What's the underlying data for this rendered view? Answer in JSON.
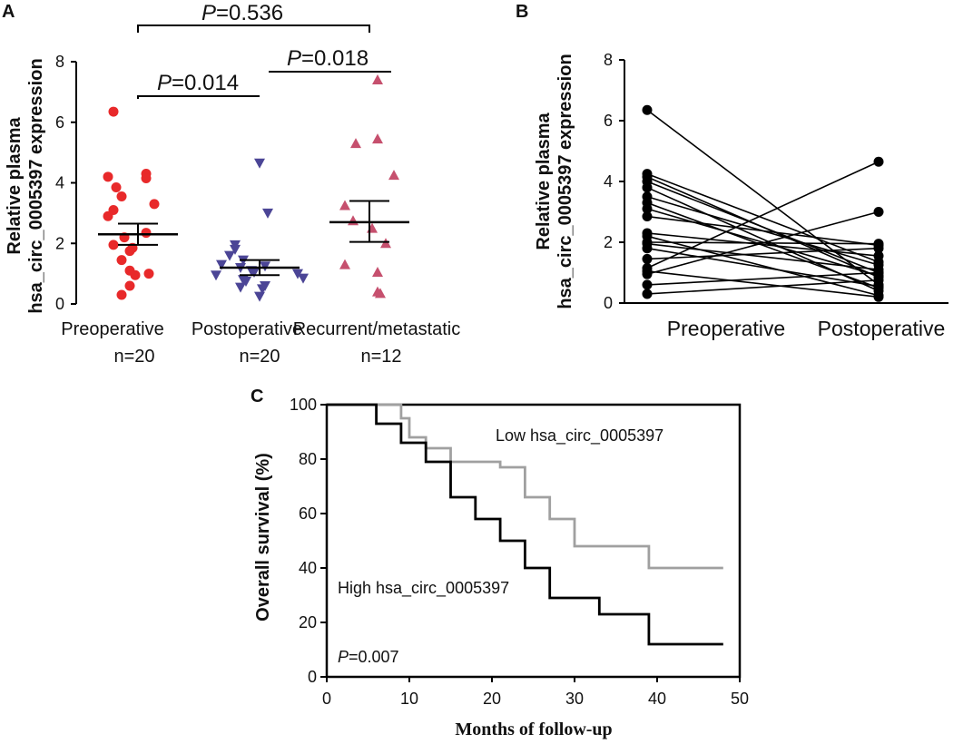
{
  "colors": {
    "preoperative": "#e8292a",
    "postoperative": "#4b4596",
    "recurrent": "#c6506e",
    "axis": "#000000",
    "high_line": "#000000",
    "low_line": "#a0a0a0"
  },
  "chart_data": [
    {
      "panel": "A",
      "type": "scatter",
      "title": "",
      "ylabel_line1": "Relative plasma",
      "ylabel_line2": "hsa_circ_0005397 expression",
      "ylim": [
        0,
        8
      ],
      "yticks": [
        "0",
        "2",
        "4",
        "6",
        "8"
      ],
      "groups": [
        {
          "name": "Preoperative",
          "n_label": "n=20",
          "marker": "circle",
          "mean": 2.3,
          "sem_low": 1.95,
          "sem_high": 2.65,
          "values": [
            6.35,
            4.3,
            4.15,
            4.2,
            3.85,
            3.55,
            3.3,
            3.1,
            2.9,
            2.35,
            2.2,
            1.95,
            1.85,
            1.75,
            1.45,
            1.1,
            1.0,
            0.95,
            0.6,
            0.3
          ]
        },
        {
          "name": "Postoperative",
          "n_label": "n=20",
          "marker": "triangle-down",
          "mean": 1.2,
          "sem_low": 0.95,
          "sem_high": 1.45,
          "values": [
            4.65,
            3.0,
            1.95,
            1.8,
            1.6,
            1.45,
            1.3,
            1.25,
            1.2,
            1.1,
            1.05,
            1.0,
            0.95,
            0.85,
            0.8,
            0.75,
            0.6,
            0.55,
            0.5,
            0.25
          ]
        },
        {
          "name": "Recurrent/metastatic",
          "n_label": "n=12",
          "marker": "triangle-up",
          "mean": 2.7,
          "sem_low": 2.05,
          "sem_high": 3.4,
          "values": [
            7.4,
            5.45,
            5.3,
            4.25,
            3.25,
            2.75,
            2.5,
            2.0,
            1.3,
            1.05,
            0.4,
            0.35
          ]
        }
      ],
      "comparisons": [
        {
          "p_italic": "P",
          "p_rest": "=0.536"
        },
        {
          "p_italic": "P",
          "p_rest": "=0.014"
        },
        {
          "p_italic": "P",
          "p_rest": "=0.018"
        }
      ]
    },
    {
      "panel": "B",
      "type": "line",
      "title": "",
      "ylabel_line1": "Relative plasma",
      "ylabel_line2": "hsa_circ_0005397 expression",
      "ylim": [
        0,
        8
      ],
      "yticks": [
        "0",
        "2",
        "4",
        "6",
        "8"
      ],
      "categories": [
        "Preoperative",
        "Postoperative"
      ],
      "pairs": [
        [
          6.35,
          0.6
        ],
        [
          4.25,
          1.35
        ],
        [
          4.15,
          0.85
        ],
        [
          4.0,
          1.0
        ],
        [
          3.8,
          0.4
        ],
        [
          3.5,
          1.25
        ],
        [
          3.3,
          0.5
        ],
        [
          3.1,
          0.9
        ],
        [
          2.85,
          1.9
        ],
        [
          2.3,
          1.55
        ],
        [
          2.2,
          0.25
        ],
        [
          2.0,
          1.95
        ],
        [
          1.95,
          1.1
        ],
        [
          1.8,
          0.55
        ],
        [
          1.45,
          1.8
        ],
        [
          1.15,
          4.65
        ],
        [
          1.05,
          0.2
        ],
        [
          0.95,
          3.0
        ],
        [
          0.6,
          1.0
        ],
        [
          0.3,
          0.75
        ]
      ]
    },
    {
      "panel": "C",
      "type": "line",
      "title": "",
      "xlabel": "Months of follow-up",
      "ylabel": "Overall survival (%)",
      "xlim": [
        0,
        50
      ],
      "ylim": [
        0,
        100
      ],
      "xticks": [
        "0",
        "10",
        "20",
        "30",
        "40",
        "50"
      ],
      "yticks": [
        "0",
        "20",
        "40",
        "60",
        "80",
        "100"
      ],
      "series": [
        {
          "name": "Low hsa_circ_0005397",
          "steps": [
            [
              0,
              100
            ],
            [
              9,
              95
            ],
            [
              10,
              88
            ],
            [
              12,
              84
            ],
            [
              15,
              79
            ],
            [
              21,
              77
            ],
            [
              24,
              66
            ],
            [
              27,
              58
            ],
            [
              30,
              48
            ],
            [
              39,
              40
            ],
            [
              48,
              40
            ]
          ]
        },
        {
          "name": "High hsa_circ_0005397",
          "steps": [
            [
              0,
              100
            ],
            [
              6,
              93
            ],
            [
              9,
              86
            ],
            [
              12,
              79
            ],
            [
              15,
              66
            ],
            [
              18,
              58
            ],
            [
              21,
              50
            ],
            [
              24,
              40
            ],
            [
              27,
              29
            ],
            [
              33,
              23
            ],
            [
              39,
              12
            ],
            [
              48,
              12
            ]
          ]
        }
      ],
      "annotation": {
        "p_italic": "P",
        "p_rest": "=0.007"
      }
    }
  ],
  "labels": {
    "panel_a": "A",
    "panel_b": "B",
    "panel_c": "C"
  }
}
